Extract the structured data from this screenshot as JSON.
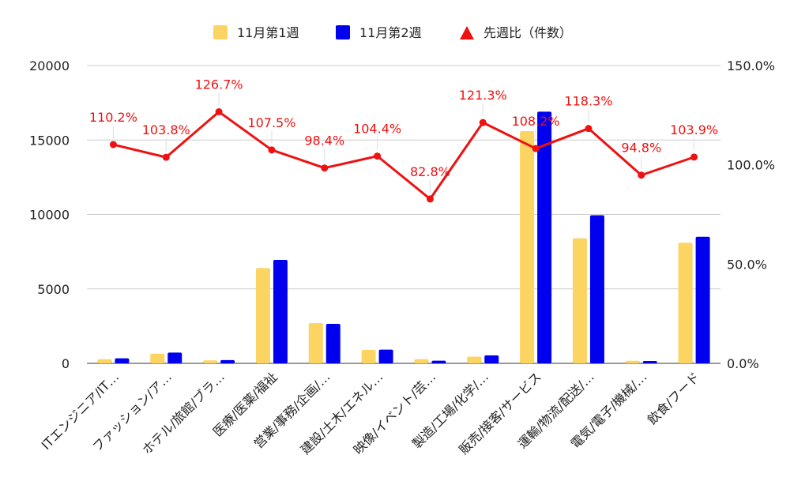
{
  "chart_data": {
    "type": "bar",
    "categories": [
      "ITエンジニア/IT…",
      "ファッション/ア…",
      "ホテル/旅館/ブラ…",
      "医療/医薬/福祉",
      "営業/事務/企画/…",
      "建設/土木/エネル…",
      "映像/イベント/芸…",
      "製造/工場/化学/…",
      "販売/接客/サービス",
      "運輸/物流/配送/…",
      "電気/電子/機械/…",
      "飲食/フード"
    ],
    "series": [
      {
        "name": "11月第1週",
        "color": "#fcd462",
        "values": [
          280,
          650,
          200,
          6400,
          2700,
          900,
          280,
          450,
          15600,
          8400,
          170,
          8100
        ]
      },
      {
        "name": "11月第2週",
        "color": "#0000ee",
        "values": [
          340,
          720,
          220,
          6950,
          2650,
          920,
          180,
          540,
          16900,
          9950,
          160,
          8500
        ]
      }
    ],
    "line_series": {
      "name": "先週比（件数）",
      "color": "#ee1111",
      "values": [
        110.2,
        103.8,
        126.7,
        107.5,
        98.4,
        104.4,
        82.8,
        121.3,
        108.2,
        118.3,
        94.8,
        103.9
      ],
      "labels": [
        "110.2%",
        "103.8%",
        "126.7%",
        "107.5%",
        "98.4%",
        "104.4%",
        "82.8%",
        "121.3%",
        "108.2%",
        "118.3%",
        "94.8%",
        "103.9%"
      ]
    },
    "ylim": [
      0,
      20000
    ],
    "yticks": [
      "0",
      "5000",
      "10000",
      "15000",
      "20000"
    ],
    "y2lim": [
      0,
      150
    ],
    "y2ticks": [
      "0.0%",
      "50.0%",
      "100.0%",
      "150.0%"
    ],
    "legend_position": "top",
    "grid": true
  }
}
